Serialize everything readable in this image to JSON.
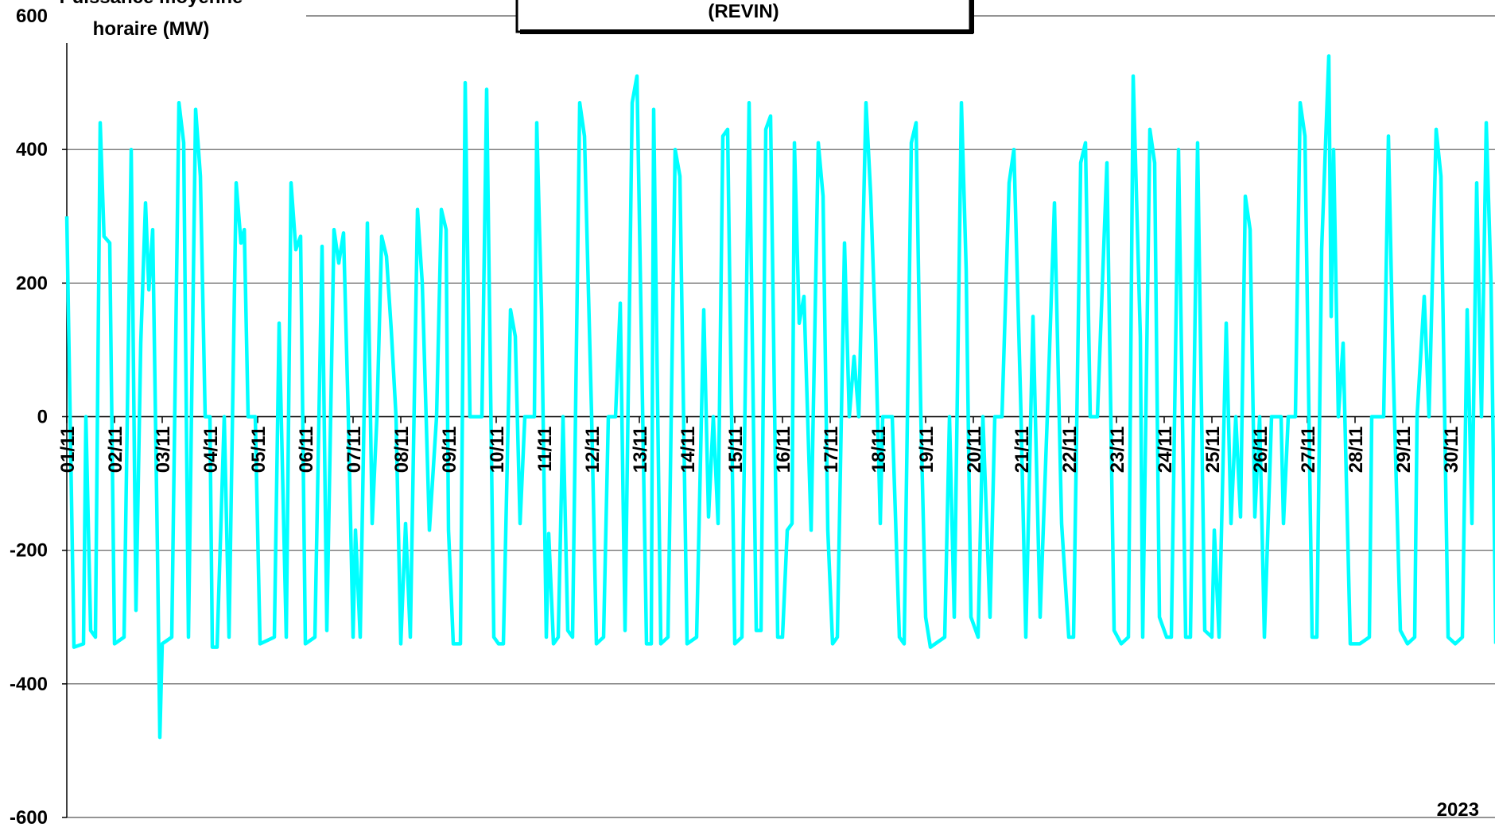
{
  "chart_data": {
    "type": "line",
    "title": "(REVIN)",
    "ylabel_lines": [
      "Puissance moyenne",
      "horaire (MW)"
    ],
    "annotation": "2023",
    "xlim": [
      1,
      31
    ],
    "xticks": [
      {
        "value": 1,
        "label": "01/11"
      },
      {
        "value": 2,
        "label": "02/11"
      },
      {
        "value": 3,
        "label": "03/11"
      },
      {
        "value": 4,
        "label": "04/11"
      },
      {
        "value": 5,
        "label": "05/11"
      },
      {
        "value": 6,
        "label": "06/11"
      },
      {
        "value": 7,
        "label": "07/11"
      },
      {
        "value": 8,
        "label": "08/11"
      },
      {
        "value": 9,
        "label": "09/11"
      },
      {
        "value": 10,
        "label": "10/11"
      },
      {
        "value": 11,
        "label": "11/11"
      },
      {
        "value": 12,
        "label": "12/11"
      },
      {
        "value": 13,
        "label": "13/11"
      },
      {
        "value": 14,
        "label": "14/11"
      },
      {
        "value": 15,
        "label": "15/11"
      },
      {
        "value": 16,
        "label": "16/11"
      },
      {
        "value": 17,
        "label": "17/11"
      },
      {
        "value": 18,
        "label": "18/11"
      },
      {
        "value": 19,
        "label": "19/11"
      },
      {
        "value": 20,
        "label": "20/11"
      },
      {
        "value": 21,
        "label": "21/11"
      },
      {
        "value": 22,
        "label": "22/11"
      },
      {
        "value": 23,
        "label": "23/11"
      },
      {
        "value": 24,
        "label": "24/11"
      },
      {
        "value": 25,
        "label": "25/11"
      },
      {
        "value": 26,
        "label": "26/11"
      },
      {
        "value": 27,
        "label": "27/11"
      },
      {
        "value": 28,
        "label": "28/11"
      },
      {
        "value": 29,
        "label": "29/11"
      },
      {
        "value": 30,
        "label": "30/11"
      }
    ],
    "ylim": [
      -600,
      600
    ],
    "yticks": [
      -600,
      -400,
      -200,
      0,
      200,
      400,
      600
    ],
    "grid": true,
    "series": [
      {
        "color": "#00ffff",
        "x": [
          1.0,
          1.15,
          1.35,
          1.4,
          1.5,
          1.6,
          1.7,
          1.78,
          1.9,
          2.0,
          2.2,
          2.35,
          2.45,
          2.55,
          2.65,
          2.72,
          2.8,
          2.9,
          2.95,
          3.0,
          3.2,
          3.35,
          3.45,
          3.55,
          3.7,
          3.8,
          3.9,
          4.0,
          4.05,
          4.15,
          4.3,
          4.4,
          4.55,
          4.65,
          4.72,
          4.8,
          4.95,
          5.05,
          5.35,
          5.45,
          5.6,
          5.7,
          5.8,
          5.9,
          6.0,
          6.2,
          6.35,
          6.45,
          6.6,
          6.7,
          6.8,
          6.9,
          7.0,
          7.05,
          7.15,
          7.3,
          7.4,
          7.5,
          7.6,
          7.7,
          7.8,
          7.9,
          8.0,
          8.1,
          8.2,
          8.35,
          8.45,
          8.6,
          8.75,
          8.85,
          8.95,
          9.0,
          9.1,
          9.25,
          9.35,
          9.45,
          9.7,
          9.8,
          9.95,
          10.05,
          10.15,
          10.3,
          10.4,
          10.5,
          10.6,
          10.8,
          10.85,
          10.95,
          11.05,
          11.1,
          11.2,
          11.3,
          11.4,
          11.5,
          11.6,
          11.75,
          11.85,
          12.0,
          12.1,
          12.25,
          12.35,
          12.5,
          12.6,
          12.7,
          12.85,
          12.95,
          13.0,
          13.15,
          13.25,
          13.3,
          13.45,
          13.6,
          13.75,
          13.85,
          14.0,
          14.2,
          14.35,
          14.45,
          14.55,
          14.65,
          14.75,
          14.85,
          15.0,
          15.15,
          15.3,
          15.45,
          15.55,
          15.65,
          15.75,
          15.9,
          16.0,
          16.1,
          16.2,
          16.25,
          16.35,
          16.45,
          16.6,
          16.75,
          16.85,
          16.95,
          17.05,
          17.15,
          17.3,
          17.4,
          17.5,
          17.6,
          17.75,
          17.85,
          17.95,
          18.05,
          18.1,
          18.3,
          18.45,
          18.55,
          18.7,
          18.8,
          18.9,
          19.0,
          19.1,
          19.4,
          19.5,
          19.6,
          19.75,
          19.85,
          19.95,
          20.1,
          20.2,
          20.35,
          20.45,
          20.6,
          20.75,
          20.85,
          21.0,
          21.1,
          21.25,
          21.4,
          21.55,
          21.7,
          21.85,
          22.0,
          22.1,
          22.25,
          22.35,
          22.45,
          22.6,
          22.8,
          22.95,
          23.1,
          23.25,
          23.35,
          23.5,
          23.55,
          23.7,
          23.8,
          23.9,
          24.05,
          24.15,
          24.3,
          24.45,
          24.55,
          24.7,
          24.85,
          25.0,
          25.05,
          25.15,
          25.3,
          25.4,
          25.5,
          25.6,
          25.7,
          25.8,
          25.9,
          26.0,
          26.1,
          26.25,
          26.45,
          26.5,
          26.6,
          26.75,
          26.85,
          26.95,
          27.1,
          27.2,
          27.3,
          27.45,
          27.5,
          27.55,
          27.65,
          27.75,
          27.9,
          28.1,
          28.3,
          28.35,
          28.6,
          28.7,
          28.8,
          28.95,
          29.1,
          29.25,
          29.3,
          29.45,
          29.55,
          29.7,
          29.8,
          29.95,
          30.1,
          30.25,
          30.35,
          30.45,
          30.55,
          30.65,
          30.75,
          30.85,
          30.95
        ],
        "values": [
          300,
          -345,
          -340,
          0,
          -320,
          -330,
          440,
          270,
          260,
          -340,
          -330,
          400,
          -290,
          110,
          320,
          190,
          280,
          -200,
          -480,
          -340,
          -330,
          470,
          410,
          -330,
          460,
          360,
          0,
          0,
          -345,
          -345,
          0,
          -330,
          350,
          260,
          280,
          0,
          0,
          -340,
          -330,
          140,
          -330,
          350,
          250,
          270,
          -340,
          -330,
          255,
          -320,
          280,
          230,
          275,
          0,
          -330,
          -170,
          -330,
          290,
          -160,
          0,
          270,
          240,
          130,
          0,
          -340,
          -160,
          -330,
          310,
          200,
          -170,
          0,
          310,
          280,
          -170,
          -340,
          -340,
          500,
          0,
          0,
          490,
          -330,
          -340,
          -340,
          160,
          120,
          -160,
          0,
          0,
          440,
          160,
          -330,
          -175,
          -340,
          -330,
          0,
          -320,
          -330,
          470,
          420,
          0,
          -340,
          -330,
          0,
          0,
          170,
          -320,
          470,
          510,
          300,
          -340,
          -340,
          460,
          -340,
          -330,
          400,
          360,
          -340,
          -330,
          160,
          -150,
          0,
          -160,
          420,
          430,
          -340,
          -330,
          470,
          -320,
          -320,
          430,
          450,
          -330,
          -330,
          -170,
          -160,
          410,
          140,
          180,
          -170,
          410,
          330,
          -170,
          -340,
          -330,
          260,
          0,
          90,
          0,
          470,
          330,
          120,
          -160,
          0,
          0,
          -330,
          -340,
          410,
          440,
          0,
          -300,
          -345,
          -330,
          0,
          -300,
          470,
          220,
          -300,
          -330,
          0,
          -300,
          0,
          0,
          350,
          400,
          0,
          -330,
          150,
          -300,
          0,
          320,
          -160,
          -330,
          -330,
          380,
          410,
          0,
          0,
          380,
          -320,
          -340,
          -330,
          510,
          120,
          -330,
          430,
          380,
          -300,
          -330,
          -330,
          400,
          -330,
          -330,
          410,
          -320,
          -330,
          -170,
          -330,
          140,
          -160,
          0,
          -150,
          330,
          280,
          -150,
          0,
          -330,
          0,
          0,
          -160,
          0,
          0,
          470,
          420,
          -330,
          -330,
          250,
          540,
          150,
          400,
          0,
          110,
          -340,
          -340,
          -330,
          0,
          0,
          420,
          70,
          -320,
          -340,
          -330,
          0,
          180,
          0,
          430,
          360,
          -330,
          -340,
          -330,
          160,
          -160,
          350,
          0,
          440,
          200,
          -340
        ]
      }
    ]
  }
}
